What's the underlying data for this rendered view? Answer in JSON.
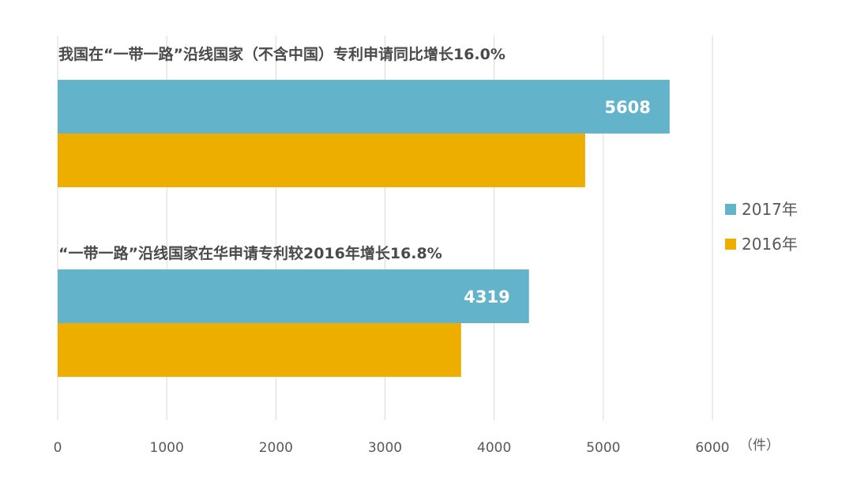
{
  "chart_data": {
    "type": "bar",
    "orientation": "horizontal",
    "groups": [
      {
        "title": "我国在“一带一路”沿线国家（不含中国）专利申请同比增长16.0%",
        "values": {
          "2017年": 5608,
          "2016年": 4834
        }
      },
      {
        "title": "“一带一路”沿线国家在华申请专利较2016年增长16.8%",
        "values": {
          "2017年": 4319,
          "2016年": 3697
        }
      }
    ],
    "series": [
      {
        "name": "2017年",
        "color": "#63B3CB"
      },
      {
        "name": "2016年",
        "color": "#EDAE00"
      }
    ],
    "data_labels_series": "2017年",
    "xlim": [
      0,
      6000
    ],
    "x_ticks": [
      0,
      1000,
      2000,
      3000,
      4000,
      5000,
      6000
    ],
    "unit_label": "（件）",
    "grid": true,
    "legend_position": "right"
  }
}
